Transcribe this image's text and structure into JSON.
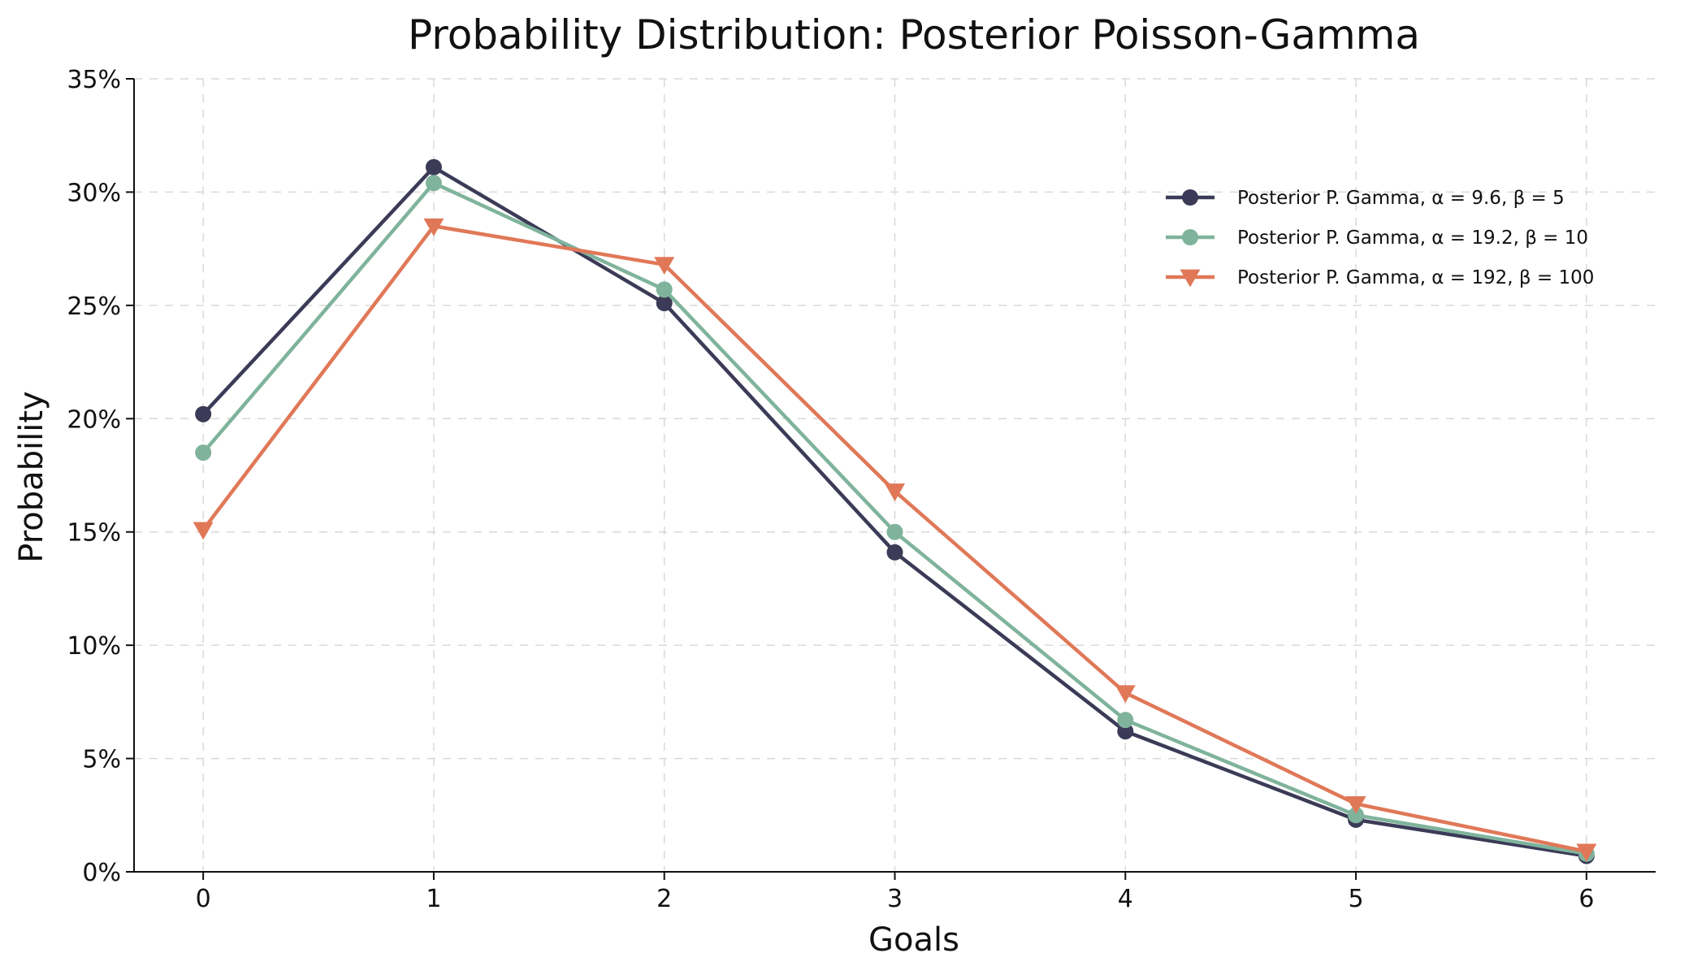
{
  "chart_data": {
    "type": "line",
    "title": "Probability Distribution: Posterior Poisson-Gamma",
    "xlabel": "Goals",
    "ylabel": "Probability",
    "x": [
      0,
      1,
      2,
      3,
      4,
      5,
      6
    ],
    "x_ticks": [
      "0",
      "1",
      "2",
      "3",
      "4",
      "5",
      "6"
    ],
    "y_ticks": [
      {
        "value": 0,
        "label": "0%"
      },
      {
        "value": 0.05,
        "label": "5%"
      },
      {
        "value": 0.1,
        "label": "10%"
      },
      {
        "value": 0.15,
        "label": "15%"
      },
      {
        "value": 0.2,
        "label": "20%"
      },
      {
        "value": 0.25,
        "label": "25%"
      },
      {
        "value": 0.3,
        "label": "30%"
      },
      {
        "value": 0.35,
        "label": "35%"
      }
    ],
    "xlim": [
      -0.3,
      6.3
    ],
    "ylim": [
      0,
      0.35
    ],
    "grid": true,
    "legend_position": "top-right",
    "series": [
      {
        "name": "Posterior P. Gamma, α = 9.6, β = 5",
        "color": "#3b3b58",
        "marker": "circle",
        "values": [
          0.202,
          0.311,
          0.251,
          0.141,
          0.062,
          0.023,
          0.007
        ]
      },
      {
        "name": "Posterior P. Gamma, α = 19.2, β = 10",
        "color": "#7fb39c",
        "marker": "circle",
        "values": [
          0.185,
          0.304,
          0.257,
          0.15,
          0.067,
          0.025,
          0.008
        ]
      },
      {
        "name": "Posterior P. Gamma, α = 192, β = 100",
        "color": "#e07858",
        "marker": "triangle-down",
        "values": [
          0.151,
          0.285,
          0.268,
          0.168,
          0.079,
          0.03,
          0.009
        ]
      }
    ]
  }
}
